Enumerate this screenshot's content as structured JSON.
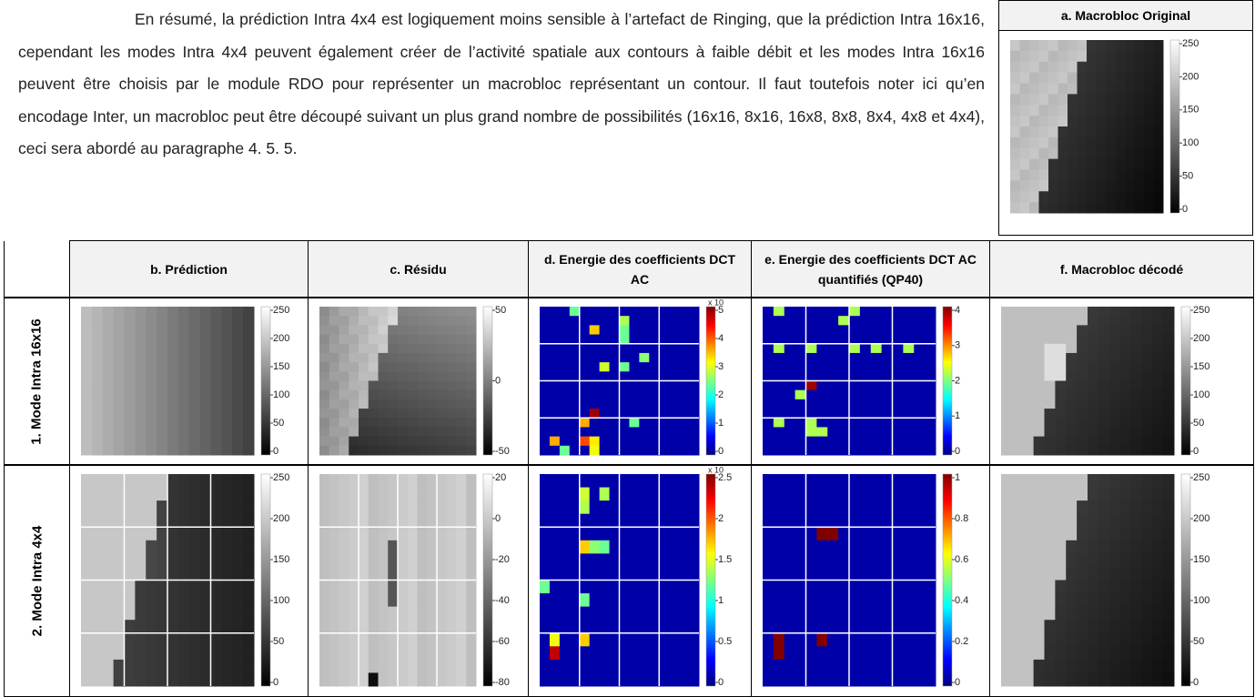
{
  "paragraph": "En résumé, la prédiction Intra 4x4 est logiquement moins sensible à l’artefact de Ringing, que la prédiction Intra 16x16, cependant les modes Intra 4x4 peuvent également créer de l’activité spatiale aux contours à faible débit et les modes Intra 16x16 peuvent être choisis par le module RDO pour représenter un macrobloc représentant un contour. Il faut toutefois noter ici qu’en encodage Inter, un macrobloc peut être découpé suivant un plus grand nombre de possibilités (16x16, 8x16, 16x8, 8x8, 8x4, 4x8 et 4x4), ceci sera abordé au paragraphe 4. 5. 5.",
  "original": {
    "title": "a. Macrobloc Original",
    "ticks": [
      "250",
      "200",
      "150",
      "100",
      "50",
      "0"
    ]
  },
  "table": {
    "headers": [
      "b. Prédiction",
      "c. Résidu",
      "d. Energie des coefficients DCT AC",
      "e. Energie des coefficients DCT AC quantifiés (QP40)",
      "f. Macrobloc décodé"
    ],
    "rows": [
      {
        "label": "1. Mode Intra 16x16",
        "cells": [
          {
            "ticks": [
              "250",
              "200",
              "150",
              "100",
              "50",
              "0"
            ]
          },
          {
            "ticks": [
              "50",
              "0",
              "-50"
            ]
          },
          {
            "exponent": "x 10",
            "ticks": [
              "5",
              "4",
              "3",
              "2",
              "1",
              "0"
            ]
          },
          {
            "ticks": [
              "4",
              "3",
              "2",
              "1",
              "0"
            ]
          },
          {
            "ticks": [
              "250",
              "200",
              "150",
              "100",
              "50",
              "0"
            ]
          }
        ]
      },
      {
        "label": "2. Mode Intra 4x4",
        "cells": [
          {
            "ticks": [
              "250",
              "200",
              "150",
              "100",
              "50",
              "0"
            ]
          },
          {
            "ticks": [
              "20",
              "0",
              "-20",
              "-40",
              "-60",
              "-80"
            ]
          },
          {
            "exponent": "x 10",
            "ticks": [
              "2.5",
              "2",
              "1.5",
              "1",
              "0.5",
              "0"
            ]
          },
          {
            "ticks": [
              "1",
              "0.8",
              "0.6",
              "0.4",
              "0.2",
              "0"
            ]
          },
          {
            "ticks": [
              "250",
              "200",
              "150",
              "100",
              "50",
              "0"
            ]
          }
        ]
      }
    ]
  }
}
